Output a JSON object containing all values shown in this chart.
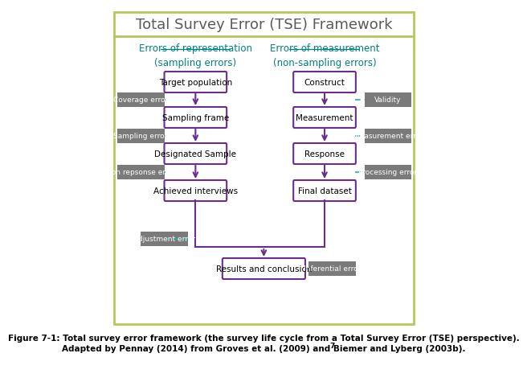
{
  "title": "Total Survey Error (TSE) Framework",
  "title_fontsize": 13,
  "title_color": "#5a5a5a",
  "outer_border_color": "#b5c95a",
  "background_color": "#ffffff",
  "header_left": "Errors of representation\n(sampling errors)",
  "header_right": "Errors of measurement\n(non-sampling errors)",
  "header_color": "#008080",
  "boxes_left": [
    "Target population",
    "Sampling frame",
    "Designated Sample",
    "Achieved interviews"
  ],
  "boxes_right": [
    "Construct",
    "Measurement",
    "Response",
    "Final dataset"
  ],
  "box_bottom": "Results and conclusion",
  "box_border_color": "#6b2d8b",
  "box_fill_color": "#ffffff",
  "box_text_color": "#000000",
  "arrow_color": "#6b2d8b",
  "error_labels_left": [
    "Coverage error",
    "Sampling error",
    "Non repsonse error"
  ],
  "error_labels_right": [
    "Validity",
    "Measurement error",
    "Processing error"
  ],
  "error_label_bottom_left": "Adjustment error",
  "error_label_bottom_right": "Inferential error",
  "error_box_fill": "#7a7a7a",
  "error_text_color": "#ffffff",
  "dashed_line_color": "#20b2aa",
  "caption_line1": "Figure 7-1: Total survey error framework (the survey life cycle from a Total Survey Error (TSE) perspective).",
  "caption_line2": "Adapted by Pennay (2014) from Groves et al. (2009) and Biemer and Lyberg (2003b).",
  "caption_superscript": "7",
  "caption_fontsize": 7.5
}
